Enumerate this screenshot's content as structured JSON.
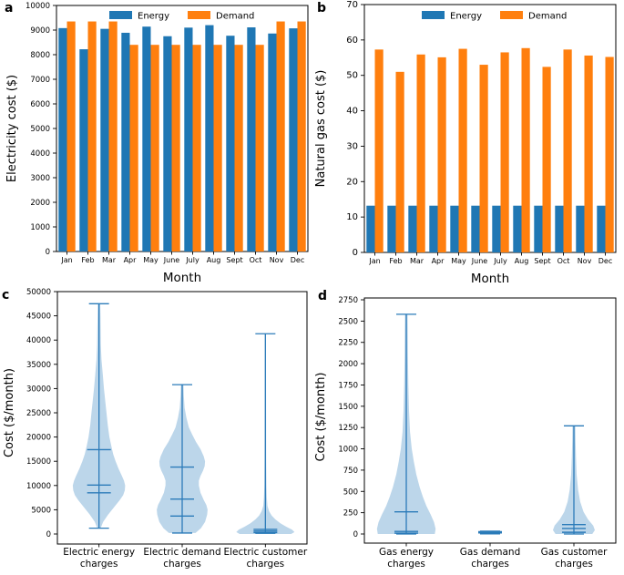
{
  "figure": {
    "background": "#ffffff"
  },
  "colors": {
    "energy": "#1f77b4",
    "demand": "#ff7f0e",
    "violin_fill": "#bcd6ea",
    "violin_line": "#2b7bb9",
    "axis": "#000000",
    "text": "#000000"
  },
  "chart_data": [
    {
      "id": "a",
      "panel_label": "a",
      "type": "bar",
      "xlabel": "Month",
      "ylabel": "Electricity cost ($)",
      "ylim": [
        0,
        10000
      ],
      "ytick_step": 1000,
      "grid": false,
      "legend_position": "top-inside",
      "categories": [
        "Jan",
        "Feb",
        "Mar",
        "Apr",
        "May",
        "June",
        "July",
        "Aug",
        "Sept",
        "Oct",
        "Nov",
        "Dec"
      ],
      "series": [
        {
          "name": "Energy",
          "color": "#1f77b4",
          "values": [
            9080,
            8220,
            9050,
            8890,
            9140,
            8750,
            9100,
            9200,
            8770,
            9110,
            8860,
            9070
          ]
        },
        {
          "name": "Demand",
          "color": "#ff7f0e",
          "values": [
            9350,
            9350,
            9350,
            8400,
            8400,
            8400,
            8400,
            8400,
            8400,
            8400,
            9350,
            9350
          ]
        }
      ]
    },
    {
      "id": "b",
      "panel_label": "b",
      "type": "bar",
      "xlabel": "Month",
      "ylabel": "Natural gas cost ($)",
      "ylim": [
        0,
        70
      ],
      "ytick_step": 10,
      "grid": false,
      "legend_position": "top-inside",
      "categories": [
        "Jan",
        "Feb",
        "Mar",
        "Apr",
        "May",
        "June",
        "July",
        "Aug",
        "Sept",
        "Oct",
        "Nov",
        "Dec"
      ],
      "series": [
        {
          "name": "Energy",
          "color": "#1f77b4",
          "values": [
            13.2,
            13.2,
            13.2,
            13.2,
            13.2,
            13.2,
            13.2,
            13.2,
            13.2,
            13.2,
            13.2,
            13.2
          ]
        },
        {
          "name": "Demand",
          "color": "#ff7f0e",
          "values": [
            57.3,
            51.0,
            55.9,
            55.1,
            57.5,
            53.0,
            56.5,
            57.7,
            52.4,
            57.3,
            55.6,
            55.2
          ]
        }
      ]
    },
    {
      "id": "c",
      "panel_label": "c",
      "type": "violin",
      "xlabel": "",
      "ylabel": "Cost ($/month)",
      "ylim": [
        0,
        50000
      ],
      "ytick_step": 5000,
      "violins": [
        {
          "label_lines": [
            "Electric energy",
            "charges"
          ],
          "min": 1200,
          "q1": 8500,
          "median": 10100,
          "q3": 17400,
          "max": 47500,
          "profile": [
            [
              1200,
              0.04
            ],
            [
              2500,
              0.1
            ],
            [
              4000,
              0.22
            ],
            [
              5500,
              0.36
            ],
            [
              7000,
              0.5
            ],
            [
              8000,
              0.58
            ],
            [
              9000,
              0.62
            ],
            [
              10000,
              0.63
            ],
            [
              11000,
              0.6
            ],
            [
              12000,
              0.55
            ],
            [
              13500,
              0.47
            ],
            [
              15000,
              0.4
            ],
            [
              16500,
              0.34
            ],
            [
              18000,
              0.3
            ],
            [
              20000,
              0.25
            ],
            [
              22500,
              0.21
            ],
            [
              25000,
              0.18
            ],
            [
              27500,
              0.15
            ],
            [
              30000,
              0.12
            ],
            [
              33000,
              0.09
            ],
            [
              36000,
              0.06
            ],
            [
              39000,
              0.045
            ],
            [
              42000,
              0.04
            ],
            [
              45000,
              0.035
            ],
            [
              47500,
              0.03
            ]
          ]
        },
        {
          "label_lines": [
            "Electric demand",
            "charges"
          ],
          "min": 200,
          "q1": 3700,
          "median": 7200,
          "q3": 13800,
          "max": 30800,
          "profile": [
            [
              200,
              0.32
            ],
            [
              1200,
              0.45
            ],
            [
              2500,
              0.55
            ],
            [
              4000,
              0.6
            ],
            [
              5000,
              0.61
            ],
            [
              6000,
              0.58
            ],
            [
              7000,
              0.52
            ],
            [
              8500,
              0.44
            ],
            [
              10000,
              0.4
            ],
            [
              11000,
              0.4
            ],
            [
              12000,
              0.44
            ],
            [
              13000,
              0.5
            ],
            [
              14000,
              0.54
            ],
            [
              15000,
              0.55
            ],
            [
              16000,
              0.52
            ],
            [
              17500,
              0.44
            ],
            [
              19000,
              0.33
            ],
            [
              20500,
              0.24
            ],
            [
              22000,
              0.16
            ],
            [
              24000,
              0.1
            ],
            [
              26000,
              0.06
            ],
            [
              28500,
              0.04
            ],
            [
              30800,
              0.03
            ]
          ]
        },
        {
          "label_lines": [
            "Electric customer",
            "charges"
          ],
          "min": 150,
          "q1": 300,
          "median": 600,
          "q3": 950,
          "max": 41300,
          "profile": [
            [
              0,
              0.62
            ],
            [
              400,
              0.7
            ],
            [
              900,
              0.64
            ],
            [
              1500,
              0.5
            ],
            [
              2200,
              0.36
            ],
            [
              3000,
              0.24
            ],
            [
              3800,
              0.15
            ],
            [
              4700,
              0.09
            ],
            [
              5800,
              0.05
            ],
            [
              7500,
              0.035
            ],
            [
              10000,
              0.025
            ],
            [
              15000,
              0.02
            ],
            [
              25000,
              0.016
            ],
            [
              35000,
              0.014
            ],
            [
              41300,
              0.012
            ]
          ]
        }
      ]
    },
    {
      "id": "d",
      "panel_label": "d",
      "type": "violin",
      "xlabel": "",
      "ylabel": "Cost ($/month)",
      "ylim": [
        0,
        2750
      ],
      "ytick_step": 250,
      "violins": [
        {
          "label_lines": [
            "Gas energy",
            "charges"
          ],
          "min": 0,
          "q1": 10,
          "median": 30,
          "q3": 260,
          "max": 2580,
          "profile": [
            [
              0,
              0.68
            ],
            [
              60,
              0.7
            ],
            [
              140,
              0.66
            ],
            [
              230,
              0.58
            ],
            [
              330,
              0.48
            ],
            [
              430,
              0.4
            ],
            [
              550,
              0.32
            ],
            [
              700,
              0.24
            ],
            [
              850,
              0.18
            ],
            [
              1000,
              0.13
            ],
            [
              1200,
              0.09
            ],
            [
              1450,
              0.065
            ],
            [
              1750,
              0.05
            ],
            [
              2100,
              0.04
            ],
            [
              2400,
              0.035
            ],
            [
              2580,
              0.03
            ]
          ]
        },
        {
          "label_lines": [
            "Gas demand",
            "charges"
          ],
          "min": 2,
          "q1": 13,
          "median": 20,
          "q3": 27,
          "max": 33,
          "profile": [
            [
              2,
              0.09
            ],
            [
              18,
              0.12
            ],
            [
              33,
              0.09
            ]
          ]
        },
        {
          "label_lines": [
            "Gas customer",
            "charges"
          ],
          "min": 0,
          "q1": 20,
          "median": 65,
          "q3": 110,
          "max": 1270,
          "profile": [
            [
              0,
              0.44
            ],
            [
              45,
              0.5
            ],
            [
              100,
              0.46
            ],
            [
              170,
              0.34
            ],
            [
              260,
              0.23
            ],
            [
              380,
              0.15
            ],
            [
              520,
              0.1
            ],
            [
              700,
              0.065
            ],
            [
              900,
              0.05
            ],
            [
              1100,
              0.04
            ],
            [
              1270,
              0.035
            ]
          ]
        }
      ]
    }
  ]
}
